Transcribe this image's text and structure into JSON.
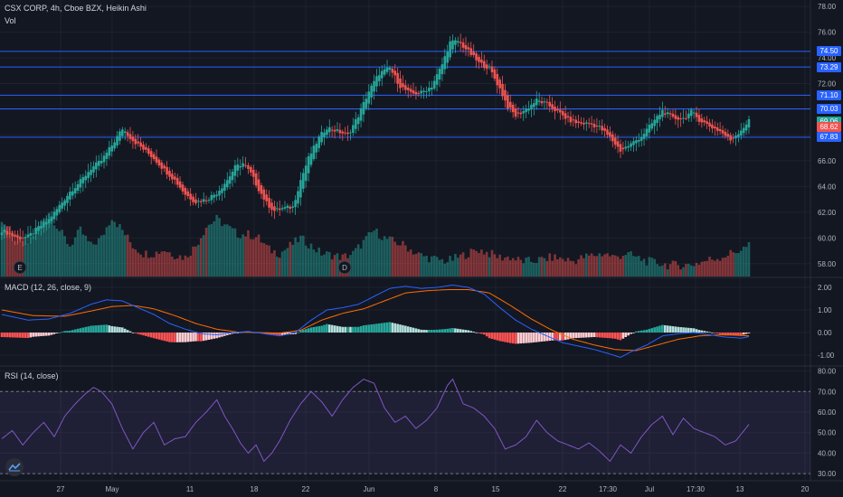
{
  "header": {
    "symbol": "CSX CORP, 4h, Cboe BZX, Heikin Ashi",
    "vol_label": "Vol",
    "macd_label": "MACD (12, 26, close, 9)",
    "rsi_label": "RSI (14, close)"
  },
  "colors": {
    "background": "#131722",
    "up": "#26a69a",
    "down": "#ef5350",
    "level_line": "#2962ff",
    "macd_line": "#2962ff",
    "signal_line": "#ff6d00",
    "rsi_line": "#7e57c2",
    "rsi_band": "#7e57c2"
  },
  "price_tags": [
    {
      "label": "74.50",
      "color": "#2962ff"
    },
    {
      "label": "73.29",
      "color": "#2962ff"
    },
    {
      "label": "71.10",
      "color": "#2962ff"
    },
    {
      "label": "70.03",
      "color": "#2962ff"
    },
    {
      "label": "69.06",
      "color": "#26a69a"
    },
    {
      "label": "68.62",
      "color": "#ef5350"
    },
    {
      "label": "67.83",
      "color": "#2962ff"
    }
  ],
  "event_markers": [
    "E",
    "D"
  ],
  "chart_data": {
    "type": "candlestick",
    "price_axis": {
      "ticks": [
        "58.00",
        "60.00",
        "62.00",
        "64.00",
        "66.00",
        "68.00",
        "70.00",
        "72.00",
        "74.00",
        "76.00",
        "78.00"
      ],
      "ylim": [
        57,
        78.5
      ]
    },
    "macd_axis": {
      "ticks": [
        "2.00",
        "1.00",
        "0.00",
        "-1.00"
      ],
      "ylim": [
        -1.4,
        2.4
      ]
    },
    "rsi_axis": {
      "ticks": [
        "80.00",
        "70.00",
        "60.00",
        "50.00",
        "40.00",
        "30.00"
      ],
      "ylim": [
        27,
        82
      ],
      "overbought": 70,
      "oversold": 30
    },
    "x_labels": [
      "27",
      "May",
      "11",
      "18",
      "22",
      "Jun",
      "8",
      "15",
      "22",
      "17:30",
      "Jul",
      "17:30",
      "13",
      "20"
    ],
    "horizontal_levels": [
      74.5,
      73.29,
      71.1,
      70.03,
      67.83
    ],
    "close_key": [
      [
        0,
        60.6
      ],
      [
        3,
        60.3
      ],
      [
        6,
        60.0
      ],
      [
        10,
        60.1
      ],
      [
        14,
        60.8
      ],
      [
        18,
        61.4
      ],
      [
        22,
        62.5
      ],
      [
        26,
        63.6
      ],
      [
        30,
        64.4
      ],
      [
        34,
        65.4
      ],
      [
        38,
        66.0
      ],
      [
        42,
        67.2
      ],
      [
        46,
        68.5
      ],
      [
        50,
        67.6
      ],
      [
        54,
        66.9
      ],
      [
        58,
        66.2
      ],
      [
        62,
        65.3
      ],
      [
        66,
        64.5
      ],
      [
        70,
        63.4
      ],
      [
        74,
        62.8
      ],
      [
        78,
        63.0
      ],
      [
        82,
        63.5
      ],
      [
        86,
        64.5
      ],
      [
        89,
        65.5
      ],
      [
        92,
        65.8
      ],
      [
        95,
        65.0
      ],
      [
        98,
        63.8
      ],
      [
        101,
        62.7
      ],
      [
        104,
        62.1
      ],
      [
        107,
        62.3
      ],
      [
        111,
        62.4
      ],
      [
        114,
        64.5
      ],
      [
        117,
        66.2
      ],
      [
        121,
        67.8
      ],
      [
        124,
        68.6
      ],
      [
        128,
        68.3
      ],
      [
        132,
        68.0
      ],
      [
        136,
        69.5
      ],
      [
        140,
        71.4
      ],
      [
        144,
        72.8
      ],
      [
        148,
        73.2
      ],
      [
        152,
        71.8
      ],
      [
        156,
        71.2
      ],
      [
        160,
        71.3
      ],
      [
        164,
        71.8
      ],
      [
        168,
        73.5
      ],
      [
        171,
        75.2
      ],
      [
        174,
        75.3
      ],
      [
        178,
        74.5
      ],
      [
        182,
        73.6
      ],
      [
        186,
        73.2
      ],
      [
        190,
        71.6
      ],
      [
        193,
        70.2
      ],
      [
        196,
        69.5
      ],
      [
        200,
        70.0
      ],
      [
        204,
        70.7
      ],
      [
        208,
        70.4
      ],
      [
        212,
        69.8
      ],
      [
        216,
        69.2
      ],
      [
        220,
        68.9
      ],
      [
        224,
        68.9
      ],
      [
        228,
        68.6
      ],
      [
        232,
        67.8
      ],
      [
        236,
        66.8
      ],
      [
        240,
        67.3
      ],
      [
        244,
        67.9
      ],
      [
        248,
        68.9
      ],
      [
        252,
        69.9
      ],
      [
        256,
        69.3
      ],
      [
        260,
        69.3
      ],
      [
        263,
        69.8
      ],
      [
        266,
        69.2
      ],
      [
        270,
        68.7
      ],
      [
        274,
        68.3
      ],
      [
        278,
        67.6
      ],
      [
        282,
        68.4
      ],
      [
        285,
        69.1
      ]
    ],
    "volume_key": [
      [
        0,
        7.5
      ],
      [
        5,
        5.0
      ],
      [
        10,
        4.5
      ],
      [
        14,
        6.5
      ],
      [
        18,
        8.5
      ],
      [
        22,
        6.0
      ],
      [
        26,
        4.0
      ],
      [
        30,
        6.0
      ],
      [
        34,
        4.0
      ],
      [
        38,
        5.0
      ],
      [
        42,
        7.8
      ],
      [
        46,
        6.0
      ],
      [
        50,
        4.0
      ],
      [
        54,
        3.0
      ],
      [
        58,
        3.0
      ],
      [
        62,
        3.5
      ],
      [
        66,
        2.8
      ],
      [
        70,
        2.5
      ],
      [
        74,
        4.0
      ],
      [
        78,
        6.5
      ],
      [
        82,
        7.5
      ],
      [
        86,
        6.5
      ],
      [
        90,
        5.5
      ],
      [
        94,
        5.5
      ],
      [
        98,
        5.0
      ],
      [
        102,
        3.5
      ],
      [
        106,
        3.0
      ],
      [
        110,
        4.0
      ],
      [
        114,
        5.0
      ],
      [
        118,
        4.0
      ],
      [
        122,
        3.0
      ],
      [
        126,
        2.8
      ],
      [
        130,
        2.5
      ],
      [
        134,
        3.0
      ],
      [
        138,
        4.5
      ],
      [
        142,
        6.0
      ],
      [
        146,
        5.0
      ],
      [
        150,
        4.5
      ],
      [
        154,
        4.0
      ],
      [
        158,
        3.0
      ],
      [
        162,
        2.5
      ],
      [
        166,
        2.2
      ],
      [
        170,
        2.0
      ],
      [
        174,
        2.5
      ],
      [
        178,
        3.0
      ],
      [
        182,
        3.5
      ],
      [
        186,
        3.0
      ],
      [
        190,
        2.5
      ],
      [
        194,
        2.5
      ],
      [
        198,
        2.0
      ],
      [
        202,
        2.0
      ],
      [
        206,
        2.2
      ],
      [
        210,
        2.5
      ],
      [
        214,
        2.3
      ],
      [
        218,
        2.0
      ],
      [
        222,
        2.5
      ],
      [
        226,
        2.8
      ],
      [
        230,
        3.0
      ],
      [
        234,
        2.5
      ],
      [
        238,
        3.0
      ],
      [
        242,
        2.5
      ],
      [
        246,
        2.0
      ],
      [
        250,
        1.8
      ],
      [
        254,
        1.5
      ],
      [
        258,
        1.5
      ],
      [
        262,
        1.5
      ],
      [
        266,
        1.8
      ],
      [
        270,
        2.2
      ],
      [
        274,
        2.5
      ],
      [
        278,
        3.0
      ],
      [
        282,
        3.5
      ],
      [
        285,
        4.0
      ]
    ],
    "macd_key": [
      [
        0,
        0.8
      ],
      [
        10,
        0.55
      ],
      [
        18,
        0.6
      ],
      [
        26,
        0.85
      ],
      [
        34,
        1.25
      ],
      [
        40,
        1.45
      ],
      [
        46,
        1.4
      ],
      [
        52,
        1.1
      ],
      [
        58,
        0.8
      ],
      [
        64,
        0.4
      ],
      [
        70,
        0.15
      ],
      [
        76,
        -0.05
      ],
      [
        82,
        -0.1
      ],
      [
        88,
        0.0
      ],
      [
        94,
        0.05
      ],
      [
        100,
        -0.05
      ],
      [
        106,
        -0.15
      ],
      [
        112,
        0.0
      ],
      [
        118,
        0.55
      ],
      [
        124,
        1.0
      ],
      [
        130,
        1.1
      ],
      [
        136,
        1.25
      ],
      [
        142,
        1.6
      ],
      [
        148,
        1.95
      ],
      [
        154,
        2.05
      ],
      [
        160,
        1.95
      ],
      [
        166,
        2.0
      ],
      [
        172,
        2.1
      ],
      [
        178,
        2.0
      ],
      [
        184,
        1.7
      ],
      [
        190,
        1.1
      ],
      [
        196,
        0.55
      ],
      [
        202,
        0.15
      ],
      [
        208,
        -0.15
      ],
      [
        214,
        -0.45
      ],
      [
        220,
        -0.6
      ],
      [
        226,
        -0.75
      ],
      [
        232,
        -0.95
      ],
      [
        236,
        -1.1
      ],
      [
        240,
        -0.85
      ],
      [
        246,
        -0.55
      ],
      [
        252,
        -0.15
      ],
      [
        258,
        -0.05
      ],
      [
        264,
        0.0
      ],
      [
        270,
        -0.1
      ],
      [
        276,
        -0.2
      ],
      [
        282,
        -0.25
      ],
      [
        285,
        -0.18
      ]
    ],
    "signal_key": [
      [
        0,
        1.0
      ],
      [
        12,
        0.75
      ],
      [
        24,
        0.72
      ],
      [
        34,
        0.95
      ],
      [
        42,
        1.15
      ],
      [
        50,
        1.2
      ],
      [
        58,
        1.05
      ],
      [
        66,
        0.75
      ],
      [
        74,
        0.4
      ],
      [
        82,
        0.15
      ],
      [
        90,
        0.02
      ],
      [
        98,
        0.0
      ],
      [
        106,
        -0.03
      ],
      [
        114,
        0.1
      ],
      [
        122,
        0.55
      ],
      [
        130,
        0.85
      ],
      [
        138,
        1.05
      ],
      [
        146,
        1.4
      ],
      [
        154,
        1.75
      ],
      [
        162,
        1.85
      ],
      [
        170,
        1.9
      ],
      [
        178,
        1.9
      ],
      [
        186,
        1.75
      ],
      [
        194,
        1.2
      ],
      [
        202,
        0.6
      ],
      [
        210,
        0.1
      ],
      [
        218,
        -0.3
      ],
      [
        226,
        -0.55
      ],
      [
        234,
        -0.75
      ],
      [
        242,
        -0.8
      ],
      [
        250,
        -0.55
      ],
      [
        258,
        -0.3
      ],
      [
        266,
        -0.15
      ],
      [
        274,
        -0.1
      ],
      [
        280,
        -0.12
      ],
      [
        285,
        -0.15
      ]
    ],
    "rsi_key": [
      [
        0,
        47
      ],
      [
        4,
        51
      ],
      [
        8,
        44
      ],
      [
        12,
        50
      ],
      [
        16,
        55
      ],
      [
        20,
        48
      ],
      [
        24,
        58
      ],
      [
        28,
        64
      ],
      [
        32,
        69
      ],
      [
        35,
        72
      ],
      [
        38,
        70
      ],
      [
        42,
        64
      ],
      [
        46,
        52
      ],
      [
        50,
        42
      ],
      [
        54,
        50
      ],
      [
        58,
        55
      ],
      [
        62,
        44
      ],
      [
        66,
        47
      ],
      [
        70,
        48
      ],
      [
        74,
        55
      ],
      [
        78,
        60
      ],
      [
        82,
        66
      ],
      [
        85,
        58
      ],
      [
        88,
        52
      ],
      [
        91,
        45
      ],
      [
        94,
        40
      ],
      [
        97,
        44
      ],
      [
        100,
        36
      ],
      [
        103,
        40
      ],
      [
        106,
        46
      ],
      [
        110,
        56
      ],
      [
        114,
        64
      ],
      [
        118,
        70
      ],
      [
        122,
        65
      ],
      [
        126,
        58
      ],
      [
        130,
        66
      ],
      [
        134,
        72
      ],
      [
        138,
        76
      ],
      [
        142,
        74
      ],
      [
        146,
        62
      ],
      [
        150,
        55
      ],
      [
        154,
        58
      ],
      [
        158,
        52
      ],
      [
        162,
        56
      ],
      [
        166,
        62
      ],
      [
        170,
        73
      ],
      [
        172,
        76
      ],
      [
        176,
        64
      ],
      [
        180,
        62
      ],
      [
        184,
        58
      ],
      [
        188,
        52
      ],
      [
        192,
        42
      ],
      [
        196,
        44
      ],
      [
        200,
        48
      ],
      [
        204,
        56
      ],
      [
        208,
        50
      ],
      [
        212,
        46
      ],
      [
        216,
        44
      ],
      [
        220,
        42
      ],
      [
        224,
        45
      ],
      [
        228,
        41
      ],
      [
        232,
        36
      ],
      [
        236,
        44
      ],
      [
        240,
        40
      ],
      [
        244,
        48
      ],
      [
        248,
        54
      ],
      [
        252,
        58
      ],
      [
        256,
        49
      ],
      [
        260,
        57
      ],
      [
        264,
        52
      ],
      [
        268,
        50
      ],
      [
        272,
        48
      ],
      [
        276,
        44
      ],
      [
        280,
        46
      ],
      [
        285,
        54
      ]
    ]
  }
}
